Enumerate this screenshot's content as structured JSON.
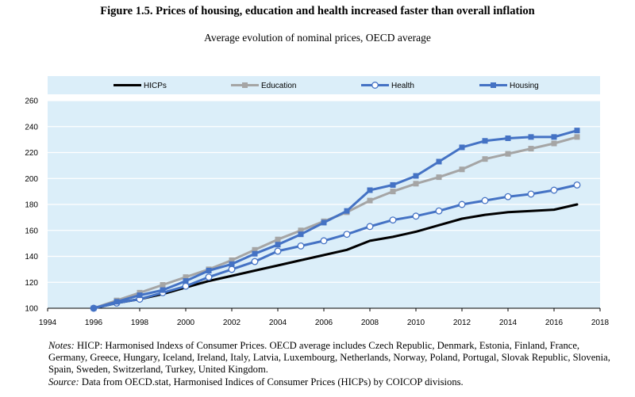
{
  "figure": {
    "title": "Figure 1.5. Prices of housing, education and health increased faster than overall inflation",
    "subtitle": "Average evolution of nominal prices, OECD average"
  },
  "notes": {
    "notes_label": "Notes:",
    "notes_text": "HICP: Harmonised Indexs of Consumer Prices. OECD average includes Czech Republic, Denmark, Estonia, Finland, France, Germany, Greece, Hungary, Iceland, Ireland, Italy, Latvia, Luxembourg, Netherlands, Norway, Poland, Portugal, Slovak Republic, Slovenia, Spain, Sweden, Switzerland, Turkey, United Kingdom.",
    "source_label": "Source:",
    "source_text": "Data from OECD.stat, Harmonised Indices of Consumer Prices (HICPs) by COICOP divisions."
  },
  "chart_data": {
    "type": "line",
    "title": "Figure 1.5. Prices of housing, education and health increased faster than overall inflation",
    "subtitle": "Average evolution of nominal prices, OECD average",
    "xlabel": "",
    "ylabel": "",
    "xlim": [
      1994,
      2018
    ],
    "ylim": [
      100,
      260
    ],
    "xticks": [
      1994,
      1996,
      1998,
      2000,
      2002,
      2004,
      2006,
      2008,
      2010,
      2012,
      2014,
      2016,
      2018
    ],
    "yticks": [
      100,
      120,
      140,
      160,
      180,
      200,
      220,
      240,
      260
    ],
    "grid": "horizontal",
    "legend_position": "top",
    "plot_background": "#dbeef9",
    "x": [
      1996,
      1997,
      1998,
      1999,
      2000,
      2001,
      2002,
      2003,
      2004,
      2005,
      2006,
      2007,
      2008,
      2009,
      2010,
      2011,
      2012,
      2013,
      2014,
      2015,
      2016,
      2017
    ],
    "series": [
      {
        "name": "HICPs",
        "color": "#000000",
        "marker": "none",
        "values": [
          100,
          104,
          107,
          111,
          116,
          121,
          125,
          129,
          133,
          137,
          141,
          145,
          152,
          155,
          159,
          164,
          169,
          172,
          174,
          175,
          176,
          180
        ]
      },
      {
        "name": "Education",
        "color": "#a5a5a5",
        "marker": "square",
        "values": [
          100,
          106,
          112,
          118,
          124,
          130,
          137,
          145,
          153,
          160,
          167,
          174,
          183,
          190,
          196,
          201,
          207,
          215,
          219,
          223,
          227,
          232
        ]
      },
      {
        "name": "Health",
        "color": "#4472c4",
        "marker": "circle-open",
        "values": [
          100,
          104,
          107,
          112,
          117,
          124,
          130,
          136,
          144,
          148,
          152,
          157,
          163,
          168,
          171,
          175,
          180,
          183,
          186,
          188,
          191,
          195
        ]
      },
      {
        "name": "Housing",
        "color": "#4472c4",
        "marker": "square",
        "values": [
          100,
          105,
          110,
          114,
          121,
          129,
          134,
          142,
          149,
          157,
          166,
          175,
          191,
          195,
          202,
          213,
          224,
          229,
          231,
          232,
          232,
          237
        ]
      }
    ]
  }
}
